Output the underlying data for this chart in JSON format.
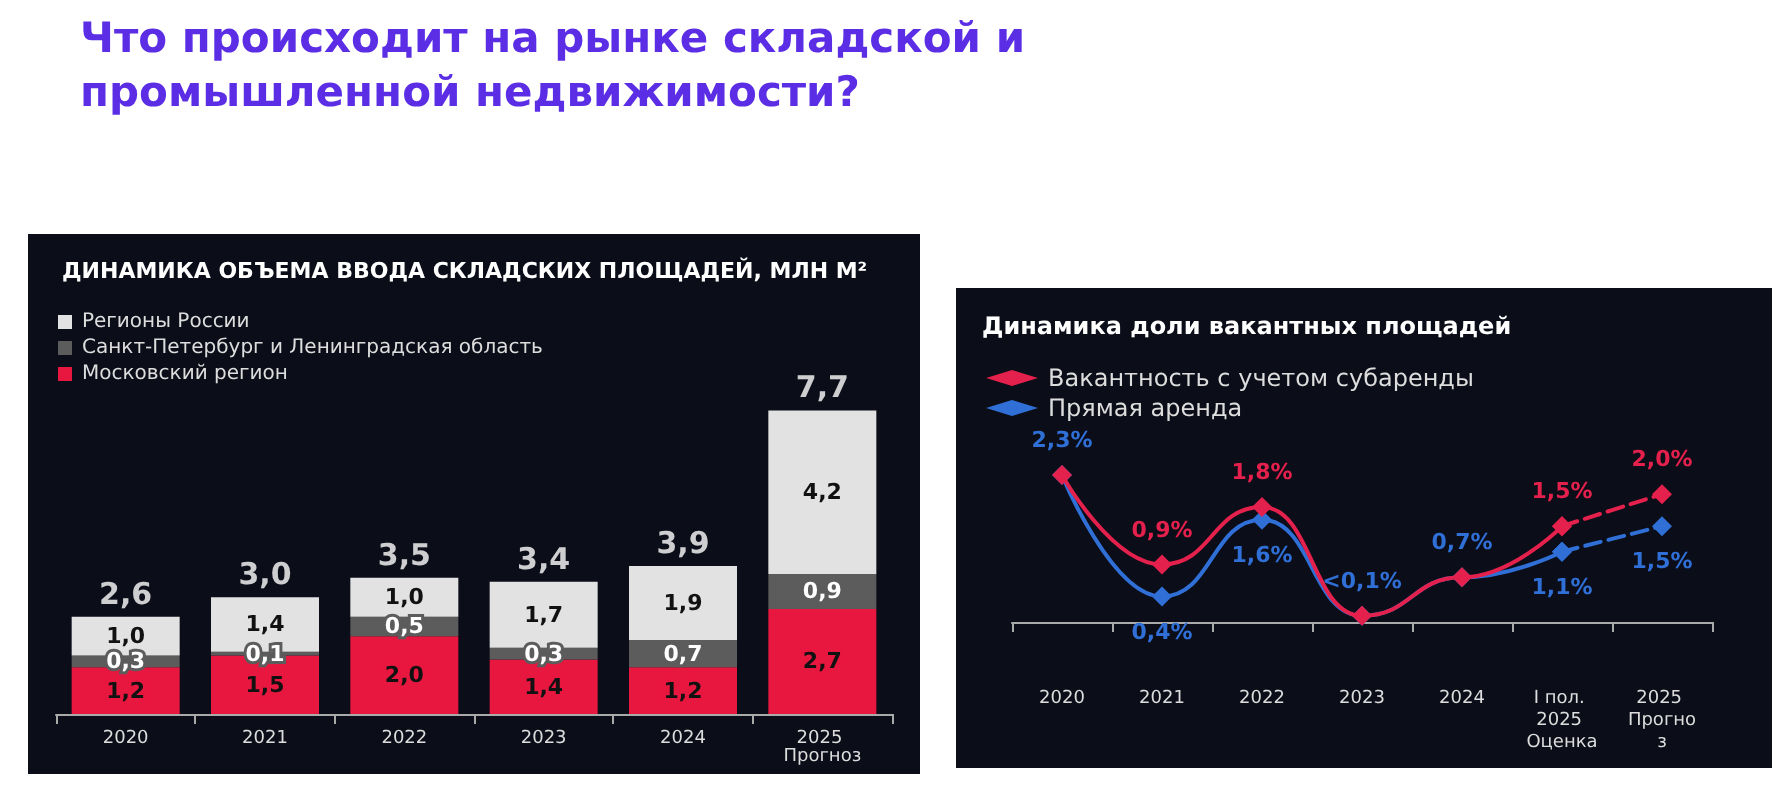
{
  "chart_data": [
    {
      "type": "other",
      "title": "Что происходит на рынке складской и промышленной недвижимости?"
    },
    {
      "type": "bar",
      "title": "ДИНАМИКА ОБЪЕМА ВВОДА СКЛАДСКИХ ПЛОЩАДЕЙ, МЛН М²",
      "categories": [
        "2020",
        "2021",
        "2022",
        "2023",
        "2024",
        "2025 Прогноз"
      ],
      "stacked": true,
      "legend": "top left",
      "series": [
        {
          "name": "Московский регион",
          "color": "#e8173f",
          "values": [
            1.2,
            1.5,
            2.0,
            1.4,
            1.2,
            2.7
          ],
          "value_labels": [
            "1,2",
            "1,5",
            "2,0",
            "1,4",
            "1,2",
            "2,7"
          ]
        },
        {
          "name": "Санкт-Петербург и Ленинградская область",
          "color": "#5c5c5c",
          "values": [
            0.3,
            0.1,
            0.5,
            0.3,
            0.7,
            0.9
          ],
          "value_labels": [
            "0,3",
            "0,1",
            "0,5",
            "0,3",
            "0,7",
            "0,9"
          ]
        },
        {
          "name": "Регионы России",
          "color": "#e2e2e2",
          "values": [
            1.0,
            1.4,
            1.0,
            1.7,
            1.9,
            4.2
          ],
          "value_labels": [
            "1,0",
            "1,4",
            "1,0",
            "1,7",
            "1,9",
            "4,2"
          ]
        }
      ],
      "totals": [
        "2,6",
        "3,0",
        "3,5",
        "3,4",
        "3,9",
        "7,7"
      ]
    },
    {
      "type": "line",
      "title": "Динамика доли вакантных площадей",
      "categories": [
        "2020",
        "2021",
        "2022",
        "2023",
        "2024",
        "I пол. 2025 Оценка",
        "2025 Прогноз"
      ],
      "legend": "top left",
      "marker": "diamond",
      "series": [
        {
          "name": "Вакантность с учетом субаренды",
          "color": "#e4204c",
          "values": [
            2.3,
            0.9,
            1.8,
            0.1,
            0.7,
            1.5,
            null
          ],
          "value_labels": [
            null,
            "0,9%",
            "1,8%",
            null,
            null,
            "1,5%",
            null
          ]
        },
        {
          "color": "#e4204c",
          "line_style": "dashed",
          "values": [
            null,
            null,
            null,
            null,
            null,
            1.5,
            2.0
          ],
          "value_labels": [
            null,
            null,
            null,
            null,
            null,
            null,
            "2,0%"
          ]
        },
        {
          "name": "Прямая аренда",
          "color": "#2f6fd6",
          "values": [
            2.3,
            0.4,
            1.6,
            0.1,
            0.7,
            1.1,
            null
          ],
          "value_labels": [
            "2,3%",
            "0,4%",
            "1,6%",
            "<0,1%",
            "0,7%",
            "1,1%",
            null
          ]
        },
        {
          "color": "#2f6fd6",
          "line_style": "dashed",
          "values": [
            null,
            null,
            null,
            null,
            null,
            1.1,
            1.5
          ],
          "value_labels": [
            null,
            null,
            null,
            null,
            null,
            null,
            "1,5%"
          ]
        }
      ]
    }
  ]
}
